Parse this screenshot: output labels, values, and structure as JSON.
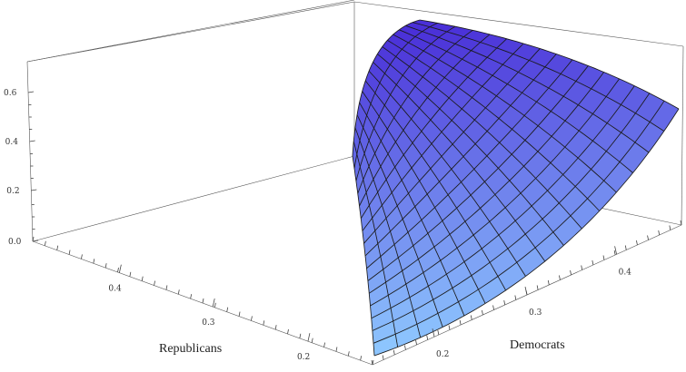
{
  "chart_data": {
    "type": "surface3d",
    "xlabel": "Democrats",
    "ylabel": "Republicans",
    "zlabel": "",
    "x_ticks": [
      "0.2",
      "0.3",
      "0.4"
    ],
    "y_ticks": [
      "0.2",
      "0.3",
      "0.4"
    ],
    "z_ticks": [
      "0.0",
      "0.2",
      "0.4",
      "0.6"
    ],
    "x_range": [
      0.15,
      0.5
    ],
    "y_range": [
      0.15,
      0.5
    ],
    "z_range": [
      0.0,
      0.7
    ],
    "grid_lines": 16,
    "surface_colors": {
      "high": "#4a30d8",
      "low": "#8fc9ff"
    },
    "box_color": "#555555"
  }
}
